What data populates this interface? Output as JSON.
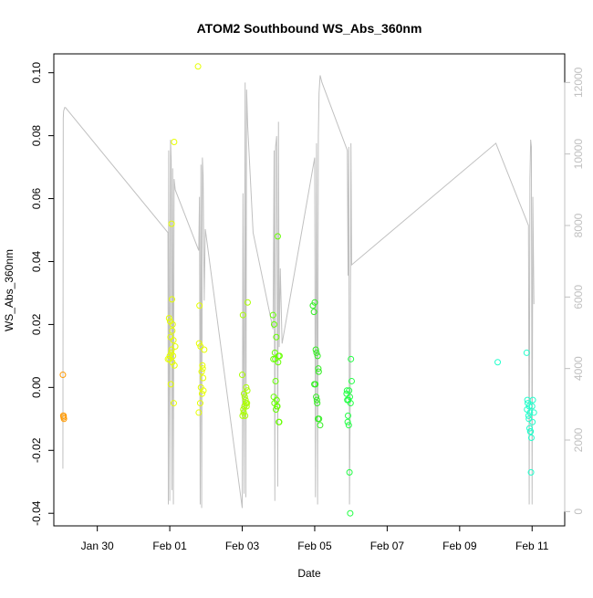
{
  "chart_data": {
    "type": "scatter",
    "title": "ATOM2 Southbound WS_Abs_360nm",
    "xlabel": "Date",
    "ylabel": "WS_Abs_360nm",
    "y2label": "",
    "x_ticks": [
      "Jan 30",
      "Feb 01",
      "Feb 03",
      "Feb 05",
      "Feb 07",
      "Feb 09",
      "Feb 11"
    ],
    "x_tick_values": [
      0.0,
      2.0,
      4.0,
      6.0,
      8.0,
      10.0,
      12.0
    ],
    "xlim": [
      -1.2,
      12.9
    ],
    "ylim": [
      -0.044,
      0.106
    ],
    "y_ticks": [
      "-0.04",
      "-0.02",
      "0.00",
      "0.02",
      "0.04",
      "0.06",
      "0.08",
      "0.10"
    ],
    "y_tick_values": [
      -0.04,
      -0.02,
      0.0,
      0.02,
      0.04,
      0.06,
      0.08,
      0.1
    ],
    "y2lim": [
      -400,
      12800
    ],
    "y2_ticks": [
      "0",
      "2000",
      "4000",
      "6000",
      "8000",
      "10000",
      "12000"
    ],
    "y2_tick_values": [
      0,
      2000,
      4000,
      6000,
      8000,
      10000,
      12000
    ],
    "grid": false,
    "legend": "none",
    "x_axis_note": "x values are days relative to Jan 30",
    "colors": {
      "line": "#c0c0c0",
      "axis": "#000000",
      "right_axis": "#c0c0c0"
    },
    "series": [
      {
        "color": "#ff9900",
        "x": [
          -0.95,
          -0.94,
          -0.93,
          -0.92,
          -0.93
        ],
        "y": [
          0.004,
          -0.009,
          -0.0095,
          -0.01,
          -0.009
        ]
      },
      {
        "color": "#e6ff00",
        "x": [
          1.95,
          1.98,
          2.0,
          2.02,
          2.04,
          2.05,
          2.06,
          2.07,
          2.08,
          2.1,
          2.12,
          2.15,
          2.03,
          2.01,
          1.99,
          2.09,
          2.11,
          2.13,
          2.05,
          2.07,
          2.78,
          2.8,
          2.82,
          2.85,
          2.88,
          2.9,
          2.92,
          2.95,
          2.84,
          2.86,
          2.89,
          2.91,
          2.93,
          2.81
        ],
        "y": [
          0.009,
          0.022,
          0.01,
          0.016,
          0.011,
          0.052,
          0.028,
          0.008,
          0.02,
          0.015,
          0.078,
          0.013,
          0.001,
          0.021,
          0.009,
          0.01,
          -0.005,
          0.007,
          0.012,
          0.018,
          0.102,
          -0.008,
          0.026,
          0.013,
          0.005,
          0.007,
          0.003,
          0.012,
          -0.005,
          0.0,
          -0.002,
          0.006,
          -0.001,
          0.014
        ]
      },
      {
        "color": "#aaff00",
        "x": [
          4.0,
          4.02,
          4.05,
          4.08,
          4.1,
          4.12,
          4.15,
          4.07,
          4.03,
          4.09,
          4.11,
          4.04,
          4.06,
          4.13,
          4.01,
          4.14
        ],
        "y": [
          0.004,
          0.023,
          -0.002,
          -0.009,
          -0.005,
          -0.006,
          0.027,
          -0.003,
          -0.007,
          -0.004,
          0.0,
          -0.008,
          -0.006,
          -0.005,
          -0.009,
          -0.001
        ]
      },
      {
        "color": "#66ff00",
        "x": [
          4.85,
          4.88,
          4.9,
          4.92,
          4.95,
          4.98,
          5.0,
          5.02,
          4.87,
          4.89,
          4.91,
          4.93,
          4.96,
          4.99,
          5.01,
          4.94,
          4.86,
          4.97,
          5.03
        ],
        "y": [
          0.023,
          0.02,
          0.011,
          0.002,
          -0.004,
          0.048,
          0.01,
          -0.011,
          -0.003,
          -0.005,
          0.009,
          -0.007,
          -0.006,
          0.008,
          -0.011,
          0.016,
          0.009,
          -0.006,
          0.01
        ]
      },
      {
        "color": "#33ee22",
        "x": [
          5.95,
          5.98,
          6.0,
          6.03,
          6.05,
          6.08,
          6.1,
          6.12,
          6.15,
          6.02,
          6.07,
          6.04,
          6.09,
          6.11,
          5.99,
          6.06
        ],
        "y": [
          0.026,
          0.024,
          0.027,
          0.012,
          0.011,
          0.01,
          0.006,
          -0.01,
          -0.012,
          0.001,
          -0.005,
          -0.003,
          -0.01,
          0.005,
          0.001,
          -0.004
        ]
      },
      {
        "color": "#22ff44",
        "x": [
          6.88,
          6.9,
          6.92,
          6.94,
          6.96,
          6.98,
          7.0,
          7.02,
          6.91,
          6.93,
          6.95,
          6.97,
          6.99,
          6.89
        ],
        "y": [
          -0.002,
          -0.004,
          -0.009,
          -0.012,
          -0.027,
          -0.04,
          0.009,
          0.002,
          -0.011,
          -0.004,
          -0.001,
          -0.003,
          -0.005,
          -0.001
        ]
      },
      {
        "color": "#22ffcc",
        "x": [
          11.05,
          11.85,
          11.87,
          11.9,
          11.92,
          11.95,
          11.97,
          12.0,
          12.02,
          12.05,
          11.88,
          11.91,
          11.93,
          11.96,
          11.98,
          12.01,
          11.86,
          11.94
        ],
        "y": [
          0.008,
          0.011,
          -0.004,
          -0.009,
          -0.006,
          -0.014,
          -0.027,
          -0.006,
          -0.004,
          -0.008,
          -0.005,
          -0.01,
          -0.013,
          -0.014,
          -0.016,
          -0.011,
          -0.007,
          -0.008
        ]
      }
    ],
    "secondary_line": {
      "color": "#c0c0c0",
      "axis": "right",
      "x": [
        -0.95,
        -0.94,
        -0.93,
        -0.9,
        -0.88,
        1.95,
        1.96,
        1.97,
        2.0,
        2.02,
        2.04,
        2.06,
        2.08,
        2.1,
        2.12,
        2.15,
        2.8,
        2.82,
        2.84,
        2.86,
        2.88,
        2.9,
        2.92,
        2.95,
        2.98,
        4.0,
        4.02,
        4.05,
        4.08,
        4.1,
        4.12,
        4.15,
        4.3,
        4.85,
        4.88,
        4.9,
        4.92,
        4.95,
        4.98,
        5.0,
        5.02,
        5.05,
        5.1,
        6.0,
        6.02,
        6.05,
        6.08,
        6.1,
        6.12,
        6.15,
        6.2,
        6.9,
        6.92,
        6.94,
        6.96,
        6.98,
        7.0,
        7.02,
        11.0,
        11.9,
        11.92,
        11.94,
        11.96,
        11.98,
        12.0,
        12.02,
        12.05
      ],
      "y": [
        1200,
        11000,
        11200,
        11300,
        11300,
        7800,
        200,
        10100,
        300,
        10400,
        9800,
        600,
        9600,
        200,
        9300,
        9000,
        7300,
        8800,
        200,
        9700,
        100,
        9900,
        9400,
        5900,
        7900,
        100,
        8900,
        500,
        12000,
        400,
        11800,
        10800,
        7800,
        5100,
        10100,
        300,
        10200,
        10500,
        700,
        10900,
        4600,
        6800,
        4700,
        9900,
        400,
        10300,
        200,
        10500,
        11700,
        12200,
        12000,
        10100,
        6600,
        10200,
        200,
        3300,
        10300,
        6900,
        10300,
        8000,
        200,
        9300,
        10400,
        10200,
        200,
        8800,
        5800
      ]
    }
  }
}
